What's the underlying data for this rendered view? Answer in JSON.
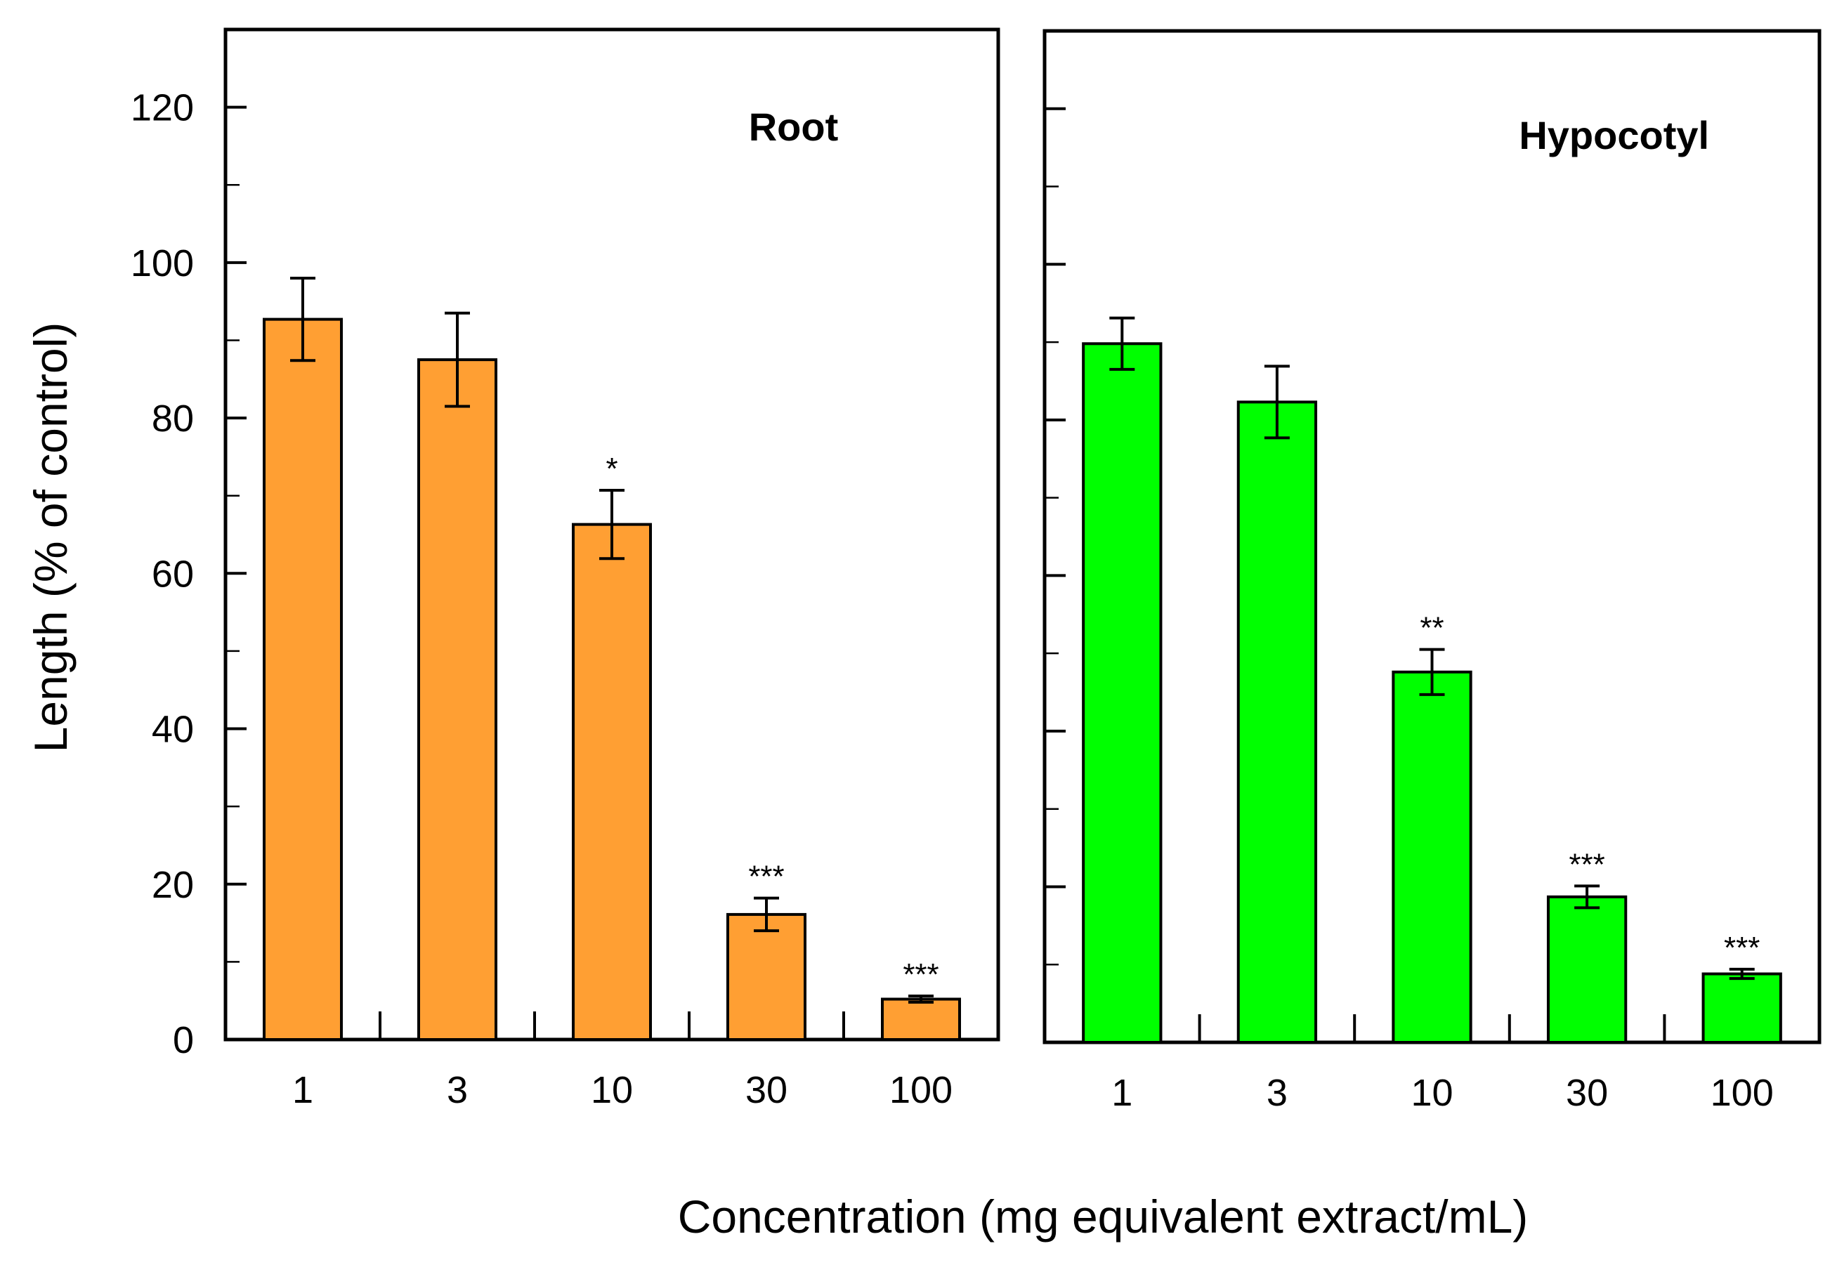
{
  "chart_data": {
    "type": "bar",
    "ylabel": "Length  (% of control)",
    "xlabel": "Concentration (mg equivalent extract/mL)",
    "ylim": [
      0,
      130
    ],
    "yticks": [
      0,
      20,
      40,
      60,
      80,
      100,
      120
    ],
    "categories": [
      "1",
      "3",
      "10",
      "30",
      "100"
    ],
    "panels": [
      {
        "title": "Root",
        "color": "#FF9F33",
        "values": [
          92.7,
          87.5,
          66.3,
          16.1,
          5.2
        ],
        "errors": [
          5.3,
          6.0,
          4.4,
          2.1,
          0.4
        ],
        "significance": [
          "",
          "",
          "*",
          "***",
          "***"
        ]
      },
      {
        "title": "Hypocotyl",
        "color": "#00FF00",
        "values": [
          89.8,
          82.3,
          47.6,
          18.7,
          8.8
        ],
        "errors": [
          3.3,
          4.6,
          2.9,
          1.4,
          0.6
        ],
        "significance": [
          "",
          "",
          "**",
          "***",
          "***"
        ]
      }
    ]
  }
}
